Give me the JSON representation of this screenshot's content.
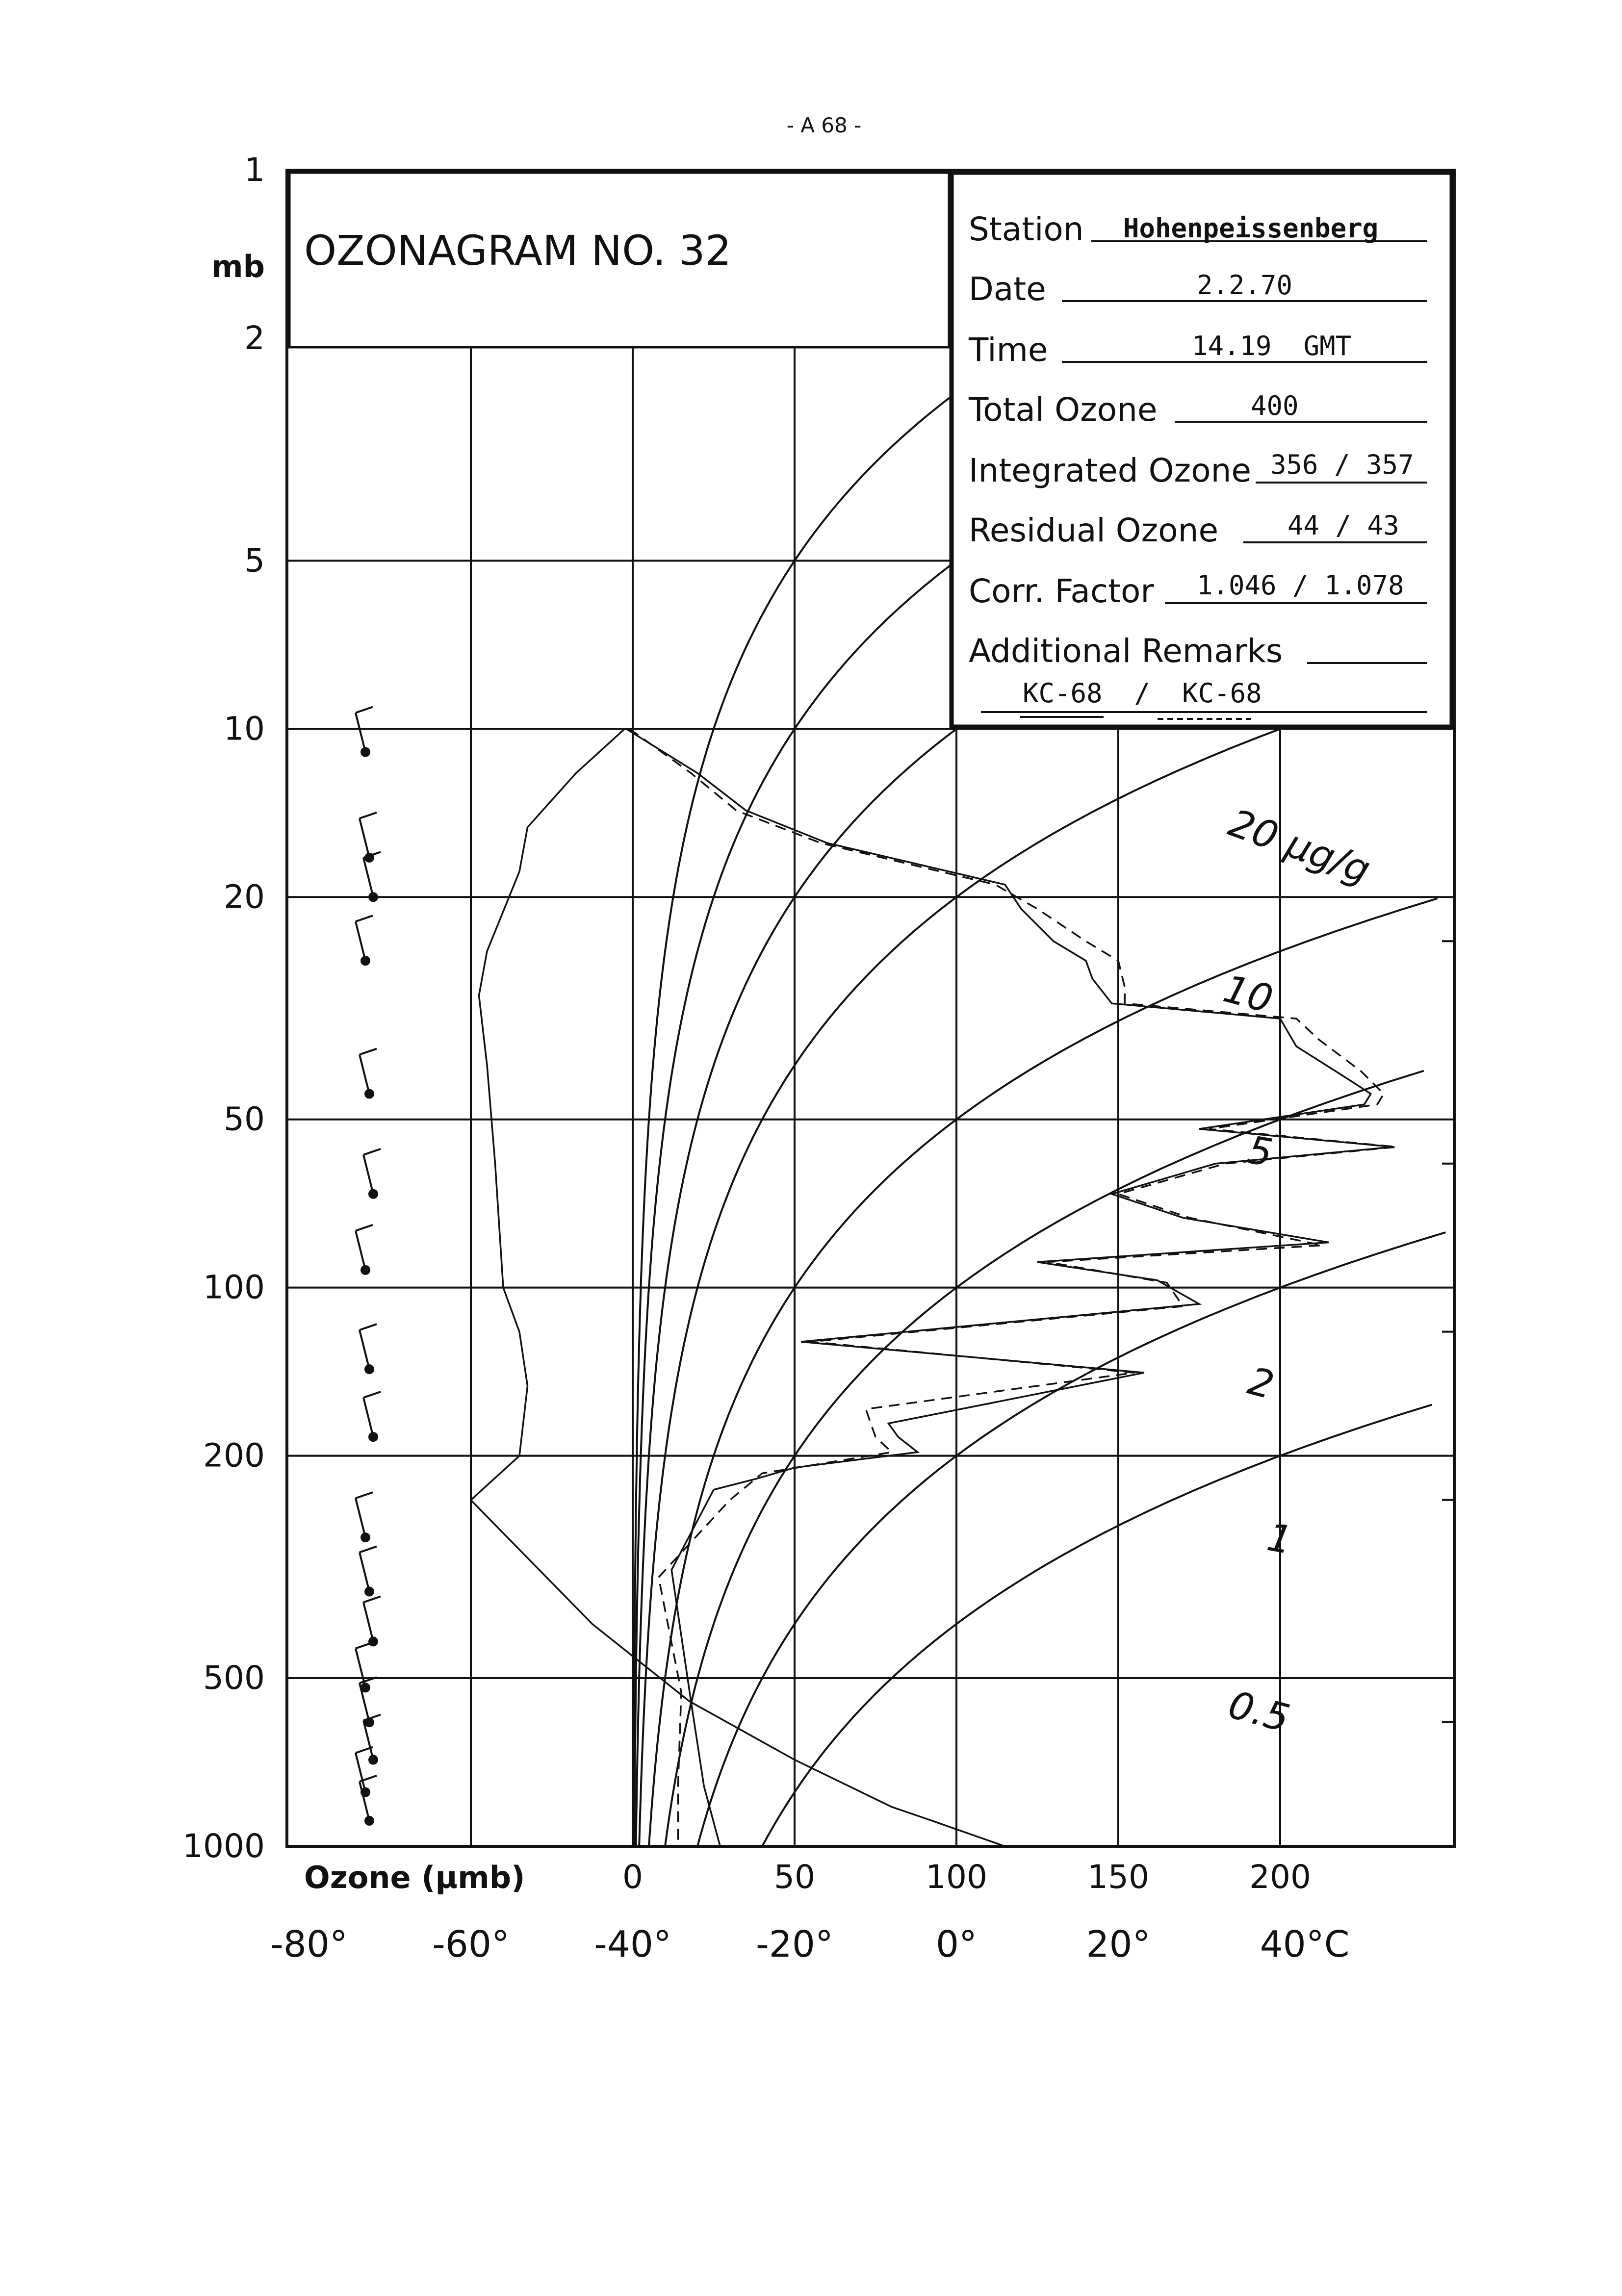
{
  "page_number": "- A 68 -",
  "title": "OZONAGRAM NO. 32",
  "info_box": {
    "station_label": "Station",
    "station_value": "Hohenpeissenberg",
    "date_label": "Date",
    "date_value": "2.2.70",
    "time_label": "Time",
    "time_value": "14.19  GMT",
    "total_label": "Total Ozone",
    "total_value": "400",
    "integrated_label": "Integrated Ozone",
    "integrated_value": "356 / 357",
    "residual_label": "Residual Ozone",
    "residual_value": "44 / 43",
    "corr_label": "Corr. Factor",
    "corr_value": "1.046 / 1.078",
    "remarks_label": "Additional Remarks",
    "remarks_value": "KC-68  /  KC-68"
  },
  "y_axis": {
    "unit": "mb",
    "tick_labels": [
      "1",
      "2",
      "5",
      "10",
      "20",
      "50",
      "100",
      "200",
      "500",
      "1000"
    ]
  },
  "x_axis": {
    "ozone_label": "Ozone (µmb)",
    "ozone_ticks": [
      "0",
      "50",
      "100",
      "150",
      "200"
    ],
    "temp_ticks": [
      "-80°",
      "-60°",
      "-40°",
      "-20°",
      "0°",
      "20°",
      "40°C"
    ]
  },
  "mixing_ratio_labels": [
    "20 µg/g",
    "10",
    "5",
    "2",
    "1",
    "0.5"
  ],
  "colors": {
    "ink": "#111111",
    "paper": "#ffffff"
  },
  "chart_data": {
    "type": "line",
    "title": "OZONAGRAM NO. 32",
    "ylabel": "mb",
    "y_scale": "log",
    "ylim": [
      1000,
      1
    ],
    "xlim_ozone": [
      0,
      250
    ],
    "xlim_temperature": [
      -80,
      40
    ],
    "series": [
      {
        "x_unit": "µmb",
        "style": "solid",
        "points": [
          {
            "p": 10,
            "x": -2
          },
          {
            "p": 12,
            "x": 20
          },
          {
            "p": 14,
            "x": 35
          },
          {
            "p": 16,
            "x": 60
          },
          {
            "p": 19,
            "x": 115
          },
          {
            "p": 21,
            "x": 120
          },
          {
            "p": 24,
            "x": 130
          },
          {
            "p": 26,
            "x": 140
          },
          {
            "p": 28,
            "x": 142
          },
          {
            "p": 31,
            "x": 148
          },
          {
            "p": 33,
            "x": 200
          },
          {
            "p": 37,
            "x": 205
          },
          {
            "p": 42,
            "x": 220
          },
          {
            "p": 45,
            "x": 228
          },
          {
            "p": 47,
            "x": 226
          },
          {
            "p": 52,
            "x": 175
          },
          {
            "p": 56,
            "x": 235
          },
          {
            "p": 60,
            "x": 180
          },
          {
            "p": 68,
            "x": 148
          },
          {
            "p": 75,
            "x": 170
          },
          {
            "p": 83,
            "x": 215
          },
          {
            "p": 90,
            "x": 125
          },
          {
            "p": 97,
            "x": 162
          },
          {
            "p": 107,
            "x": 175
          },
          {
            "p": 125,
            "x": 52
          },
          {
            "p": 142,
            "x": 158
          },
          {
            "p": 175,
            "x": 79
          },
          {
            "p": 185,
            "x": 82
          },
          {
            "p": 197,
            "x": 88
          },
          {
            "p": 210,
            "x": 50
          },
          {
            "p": 220,
            "x": 38
          },
          {
            "p": 230,
            "x": 25
          },
          {
            "p": 320,
            "x": 12
          },
          {
            "p": 550,
            "x": 18
          },
          {
            "p": 780,
            "x": 22
          },
          {
            "p": 1000,
            "x": 27
          }
        ]
      },
      {
        "x_unit": "µmb",
        "style": "dashed",
        "points": [
          {
            "p": 10,
            "x": -1
          },
          {
            "p": 12,
            "x": 18
          },
          {
            "p": 14,
            "x": 32
          },
          {
            "p": 16,
            "x": 58
          },
          {
            "p": 19,
            "x": 112
          },
          {
            "p": 21,
            "x": 125
          },
          {
            "p": 24,
            "x": 140
          },
          {
            "p": 26,
            "x": 150
          },
          {
            "p": 29,
            "x": 152
          },
          {
            "p": 31,
            "x": 152
          },
          {
            "p": 33,
            "x": 205
          },
          {
            "p": 36,
            "x": 212
          },
          {
            "p": 41,
            "x": 225
          },
          {
            "p": 45,
            "x": 232
          },
          {
            "p": 47,
            "x": 230
          },
          {
            "p": 52,
            "x": 178
          },
          {
            "p": 56,
            "x": 236
          },
          {
            "p": 60,
            "x": 183
          },
          {
            "p": 68,
            "x": 150
          },
          {
            "p": 75,
            "x": 172
          },
          {
            "p": 84,
            "x": 213
          },
          {
            "p": 90,
            "x": 128
          },
          {
            "p": 98,
            "x": 165
          },
          {
            "p": 108,
            "x": 170
          },
          {
            "p": 125,
            "x": 55
          },
          {
            "p": 142,
            "x": 155
          },
          {
            "p": 165,
            "x": 72
          },
          {
            "p": 185,
            "x": 75
          },
          {
            "p": 197,
            "x": 80
          },
          {
            "p": 215,
            "x": 40
          },
          {
            "p": 240,
            "x": 30
          },
          {
            "p": 330,
            "x": 8
          },
          {
            "p": 530,
            "x": 15
          },
          {
            "p": 780,
            "x": 14
          },
          {
            "p": 1000,
            "x": 14
          }
        ]
      },
      {
        "x_unit": "°C",
        "style": "solid",
        "points": [
          {
            "p": 10,
            "x": -41
          },
          {
            "p": 12,
            "x": -47
          },
          {
            "p": 15,
            "x": -53
          },
          {
            "p": 18,
            "x": -54
          },
          {
            "p": 25,
            "x": -58
          },
          {
            "p": 30,
            "x": -59
          },
          {
            "p": 40,
            "x": -58
          },
          {
            "p": 60,
            "x": -57
          },
          {
            "p": 100,
            "x": -56
          },
          {
            "p": 120,
            "x": -54
          },
          {
            "p": 150,
            "x": -53
          },
          {
            "p": 200,
            "x": -54
          },
          {
            "p": 240,
            "x": -60
          },
          {
            "p": 400,
            "x": -45
          },
          {
            "p": 550,
            "x": -33
          },
          {
            "p": 700,
            "x": -20
          },
          {
            "p": 850,
            "x": -8
          },
          {
            "p": 900,
            "x": -3
          },
          {
            "p": 1000,
            "x": 6
          }
        ]
      }
    ],
    "wind_barb_pressures": [
      11,
      17,
      20,
      26,
      45,
      68,
      93,
      140,
      185,
      280,
      350,
      430,
      520,
      600,
      700,
      800,
      900
    ]
  }
}
